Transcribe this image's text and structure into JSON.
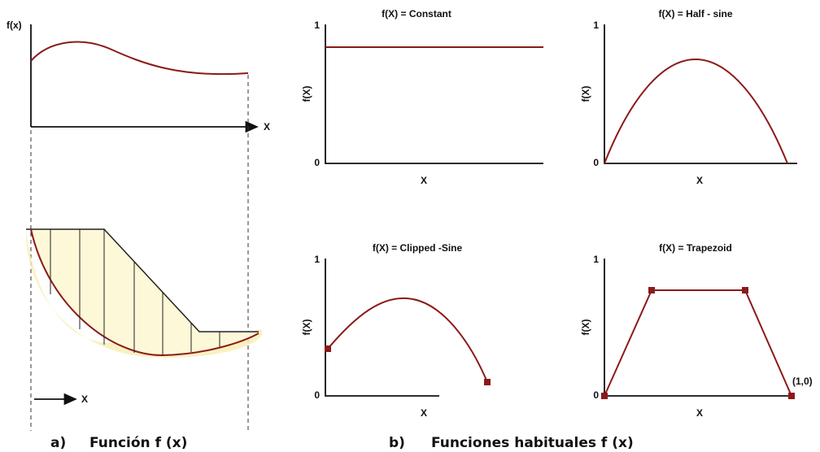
{
  "panel_a": {
    "y_label": "f(x)",
    "x_label": "X",
    "x_label_bottom": "X",
    "caption_marker": "a)",
    "caption": "Función f (x)"
  },
  "panel_b": {
    "caption_marker": "b)",
    "caption": "Funciones habituales f (x)",
    "plots": [
      {
        "title": "f(X) = Constant",
        "y_label": "f(X)",
        "x_label": "X",
        "y_top": "1",
        "y_bottom": "0"
      },
      {
        "title": "f(X) = Half - sine",
        "y_label": "f(X)",
        "x_label": "X",
        "y_top": "1",
        "y_bottom": "0"
      },
      {
        "title": "f(X) = Clipped -Sine",
        "y_label": "f(X)",
        "x_label": "X",
        "y_top": "1",
        "y_bottom": "0"
      },
      {
        "title": "f(X) = Trapezoid",
        "y_label": "f(X)",
        "x_label": "X",
        "y_top": "1",
        "y_bottom": "0",
        "point_label": "(1,0)"
      }
    ]
  }
}
